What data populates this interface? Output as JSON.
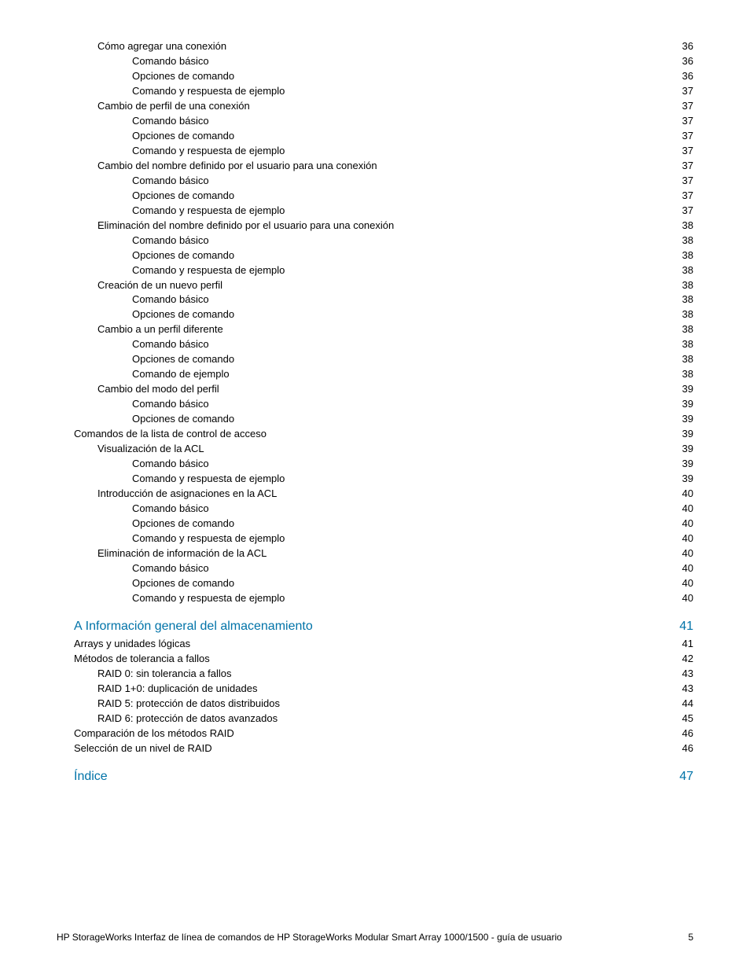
{
  "footer": {
    "text": "HP StorageWorks Interfaz de línea de comandos de HP StorageWorks Modular Smart Array 1000/1500 - guía de usuario",
    "page_number": "5"
  },
  "text_colors": {
    "link": "#0073a8",
    "body": "#000000"
  },
  "entries": [
    {
      "label": "Cómo agregar una conexión",
      "page": "36",
      "indent": 1,
      "link": false
    },
    {
      "label": "Comando básico",
      "page": "36",
      "indent": 2,
      "link": false
    },
    {
      "label": "Opciones de comando",
      "page": "36",
      "indent": 2,
      "link": false
    },
    {
      "label": "Comando y respuesta de ejemplo",
      "page": "37",
      "indent": 2,
      "link": false
    },
    {
      "label": "Cambio de perfil de una conexión",
      "page": "37",
      "indent": 1,
      "link": false
    },
    {
      "label": "Comando básico",
      "page": "37",
      "indent": 2,
      "link": false
    },
    {
      "label": "Opciones de comando",
      "page": "37",
      "indent": 2,
      "link": false
    },
    {
      "label": "Comando y respuesta de ejemplo",
      "page": "37",
      "indent": 2,
      "link": false
    },
    {
      "label": "Cambio del nombre definido por el usuario para una conexión",
      "page": "37",
      "indent": 1,
      "link": false
    },
    {
      "label": "Comando básico",
      "page": "37",
      "indent": 2,
      "link": false
    },
    {
      "label": "Opciones de comando",
      "page": "37",
      "indent": 2,
      "link": false
    },
    {
      "label": "Comando y respuesta de ejemplo",
      "page": "37",
      "indent": 2,
      "link": false
    },
    {
      "label": "Eliminación del nombre definido por el usuario para una conexión",
      "page": "38",
      "indent": 1,
      "link": false
    },
    {
      "label": "Comando básico",
      "page": "38",
      "indent": 2,
      "link": false
    },
    {
      "label": "Opciones de comando",
      "page": "38",
      "indent": 2,
      "link": false
    },
    {
      "label": "Comando y respuesta de ejemplo",
      "page": "38",
      "indent": 2,
      "link": false
    },
    {
      "label": "Creación de un nuevo perfil",
      "page": "38",
      "indent": 1,
      "link": false
    },
    {
      "label": "Comando básico",
      "page": "38",
      "indent": 2,
      "link": false
    },
    {
      "label": "Opciones de comando",
      "page": "38",
      "indent": 2,
      "link": false
    },
    {
      "label": "Cambio a un perfil diferente",
      "page": "38",
      "indent": 1,
      "link": false
    },
    {
      "label": "Comando básico",
      "page": "38",
      "indent": 2,
      "link": false
    },
    {
      "label": "Opciones de comando",
      "page": "38",
      "indent": 2,
      "link": false
    },
    {
      "label": "Comando de ejemplo",
      "page": "38",
      "indent": 2,
      "link": false
    },
    {
      "label": "Cambio del modo del perfil",
      "page": "39",
      "indent": 1,
      "link": false
    },
    {
      "label": "Comando básico",
      "page": "39",
      "indent": 2,
      "link": false
    },
    {
      "label": "Opciones de comando",
      "page": "39",
      "indent": 2,
      "link": false
    },
    {
      "label": "Comandos de la lista de control de acceso",
      "page": "39",
      "indent": 0,
      "link": false
    },
    {
      "label": "Visualización de la ACL",
      "page": "39",
      "indent": 1,
      "link": false
    },
    {
      "label": "Comando básico",
      "page": "39",
      "indent": 2,
      "link": false
    },
    {
      "label": "Comando y respuesta de ejemplo",
      "page": "39",
      "indent": 2,
      "link": false
    },
    {
      "label": "Introducción de asignaciones en la ACL",
      "page": "40",
      "indent": 1,
      "link": false
    },
    {
      "label": "Comando básico",
      "page": "40",
      "indent": 2,
      "link": false
    },
    {
      "label": "Opciones de comando",
      "page": "40",
      "indent": 2,
      "link": false
    },
    {
      "label": "Comando y respuesta de ejemplo",
      "page": "40",
      "indent": 2,
      "link": false
    },
    {
      "label": "Eliminación de información de la ACL",
      "page": "40",
      "indent": 1,
      "link": false
    },
    {
      "label": "Comando básico",
      "page": "40",
      "indent": 2,
      "link": false
    },
    {
      "label": "Opciones de comando",
      "page": "40",
      "indent": 2,
      "link": false
    },
    {
      "label": "Comando y respuesta de ejemplo",
      "page": "40",
      "indent": 2,
      "link": false
    },
    {
      "prefix": "A",
      "label": "Información general del almacenamiento",
      "page": "41",
      "indent": 0,
      "link": true,
      "section": true
    },
    {
      "label": "Arrays y unidades lógicas",
      "page": "41",
      "indent": 0,
      "link": false
    },
    {
      "label": "Métodos de tolerancia a fallos",
      "page": "42",
      "indent": 0,
      "link": false
    },
    {
      "label": "RAID 0: sin tolerancia a fallos",
      "page": "43",
      "indent": 1,
      "link": false
    },
    {
      "label": "RAID 1+0: duplicación de unidades",
      "page": "43",
      "indent": 1,
      "link": false
    },
    {
      "label": "RAID 5: protección de datos distribuidos",
      "page": "44",
      "indent": 1,
      "link": false
    },
    {
      "label": "RAID 6: protección de datos avanzados",
      "page": "45",
      "indent": 1,
      "link": false
    },
    {
      "label": "Comparación de los métodos RAID",
      "page": "46",
      "indent": 0,
      "link": false
    },
    {
      "label": "Selección de un nivel de RAID",
      "page": "46",
      "indent": 0,
      "link": false
    },
    {
      "label": "Índice",
      "page": "47",
      "indent": 0,
      "link": true,
      "section_plain": true
    }
  ]
}
